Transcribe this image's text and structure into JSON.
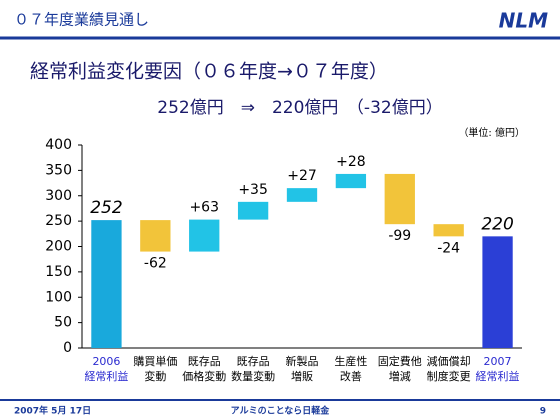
{
  "header": {
    "section": "０７年度業績見通し",
    "logo": "NLM"
  },
  "footer": {
    "date": "2007年 5月 17日",
    "tagline": "アルミのことなら日軽金",
    "page": "9"
  },
  "chart_data": {
    "type": "waterfall",
    "title": "経常利益変化要因（０６年度→０７年度）",
    "subtitle": "252億円　⇒　220億円　（-32億円）",
    "unit": "（単位: 億円）",
    "categories": [
      [
        "2006",
        "経常利益"
      ],
      [
        "購買単価",
        "変動"
      ],
      [
        "既存品",
        "価格変動"
      ],
      [
        "既存品",
        "数量変動"
      ],
      [
        "新製品",
        "増販"
      ],
      [
        "生産性",
        "改善"
      ],
      [
        "固定費他",
        "増減"
      ],
      [
        "減価償却",
        "制度変更"
      ],
      [
        "2007",
        "経常利益"
      ]
    ],
    "measure": [
      "total",
      "relative",
      "relative",
      "relative",
      "relative",
      "relative",
      "relative",
      "relative",
      "total"
    ],
    "values": [
      252,
      -62,
      63,
      35,
      27,
      28,
      -99,
      -24,
      220
    ],
    "value_labels": [
      "252",
      "-62",
      "+63",
      "+35",
      "+27",
      "+28",
      "-99",
      "-24",
      "220"
    ],
    "colors": {
      "start": "#19a9dc",
      "increase": "#22c3e6",
      "decrease": "#f2c43a",
      "end": "#2b3fd6"
    },
    "ylim": [
      0,
      400
    ],
    "yticks": [
      0,
      50,
      100,
      150,
      200,
      250,
      300,
      350,
      400
    ]
  }
}
